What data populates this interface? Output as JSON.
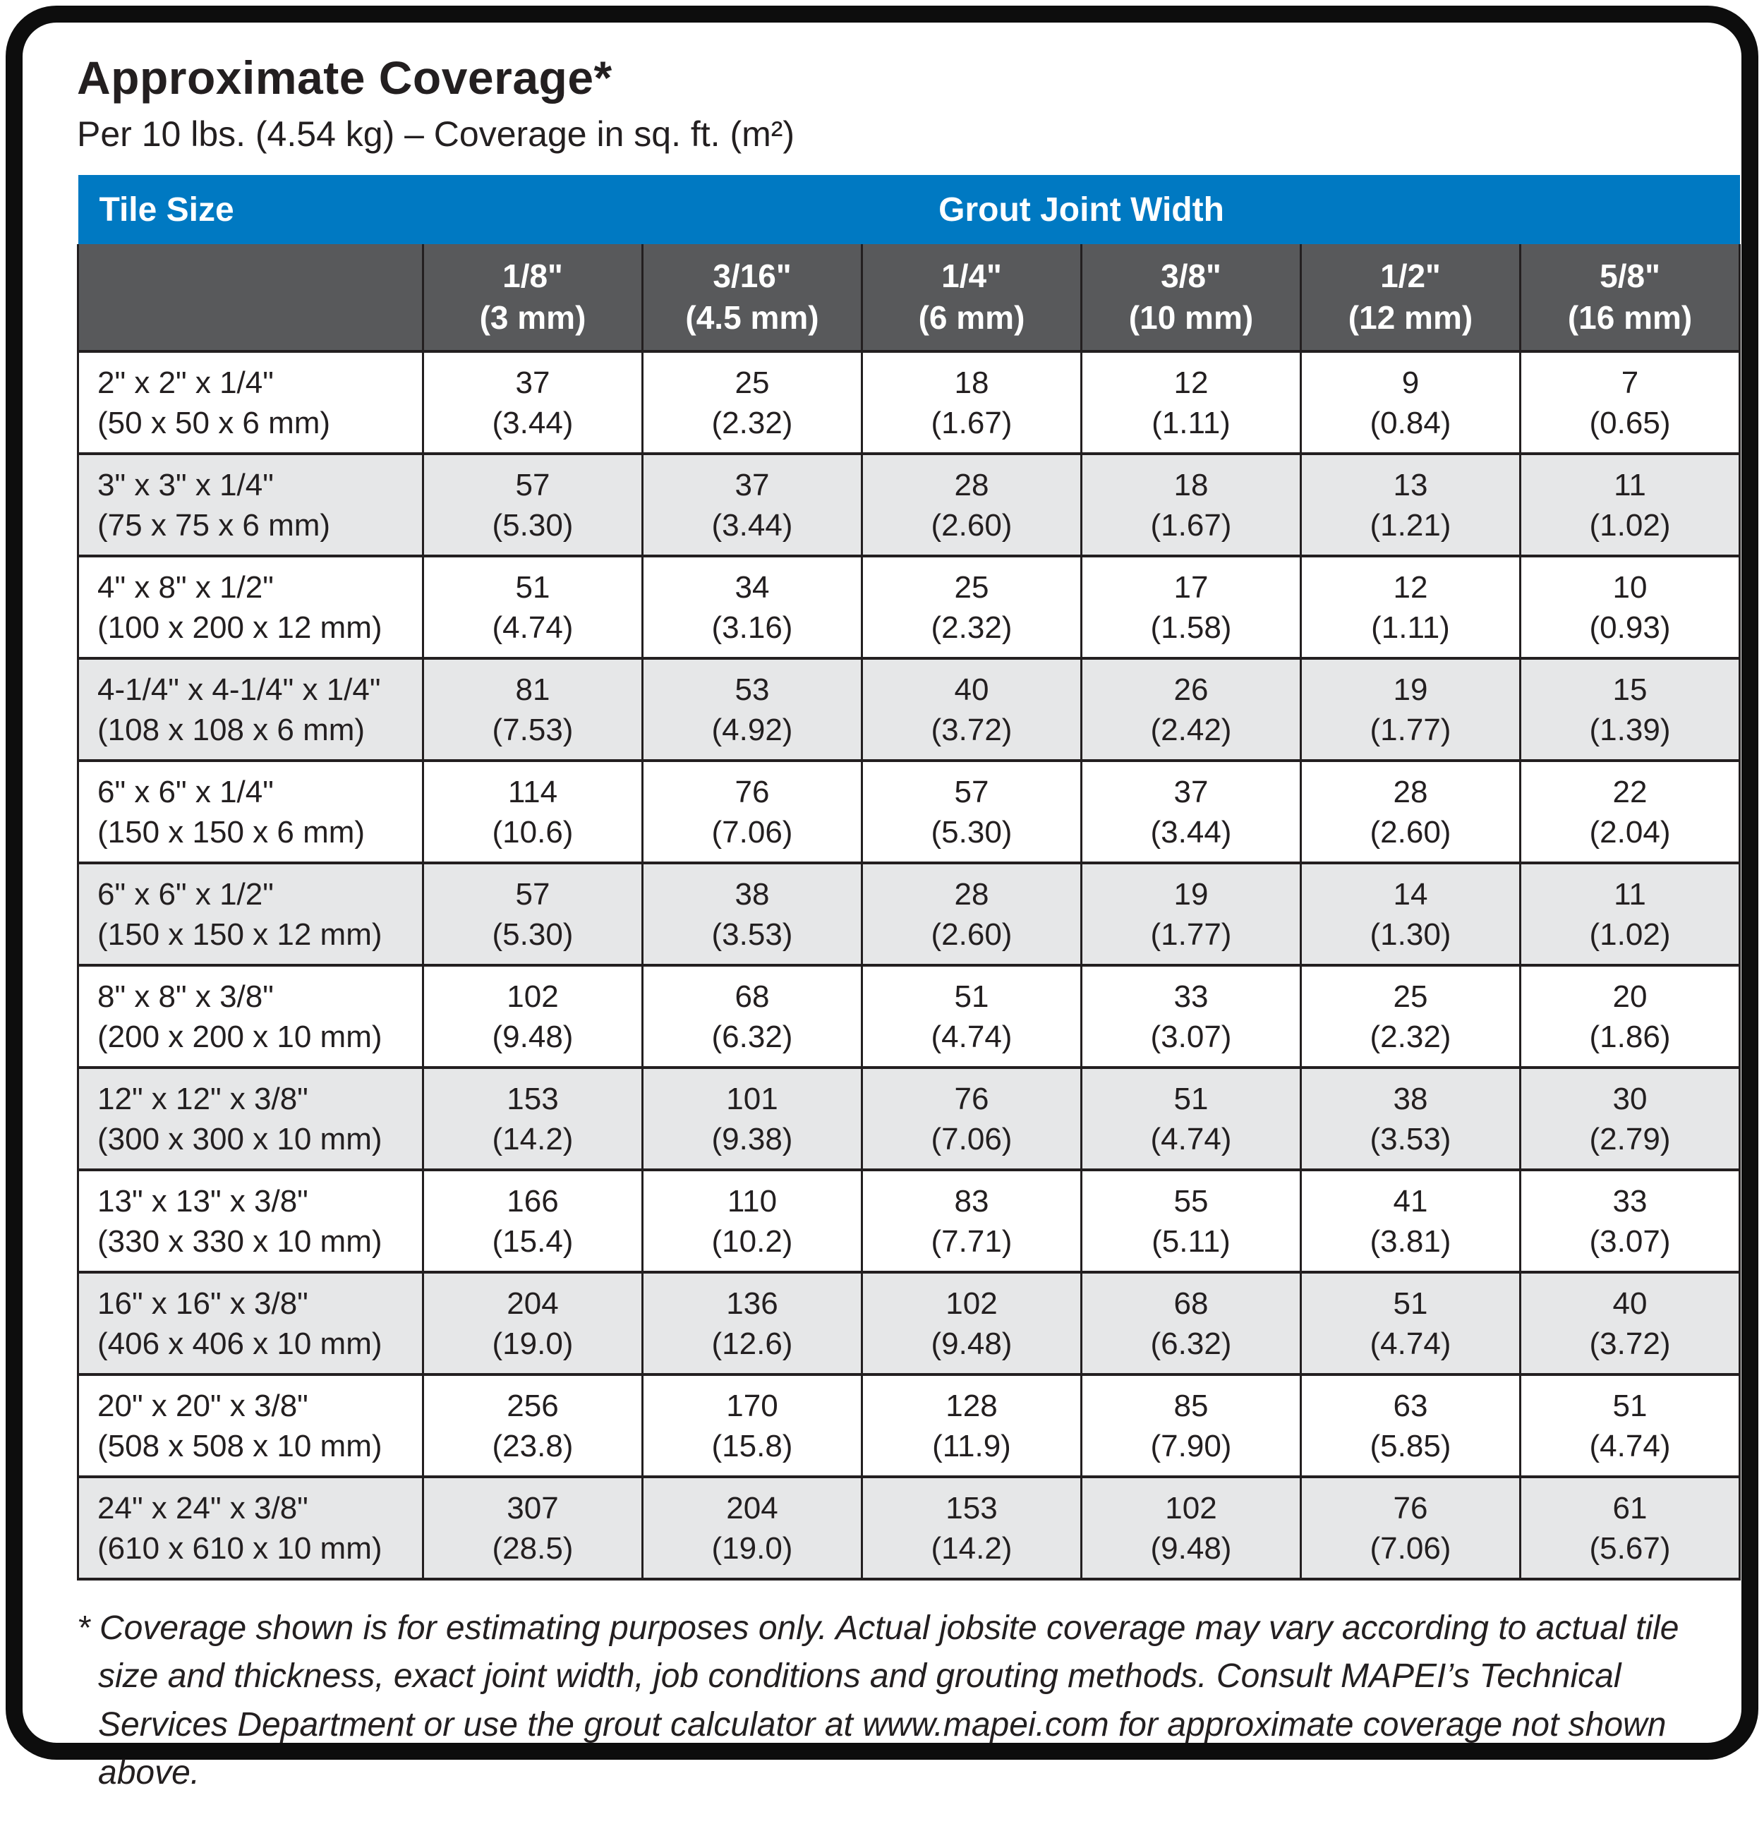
{
  "title": "Approximate Coverage*",
  "subtitle": "Per 10 lbs. (4.54 kg) – Coverage in sq. ft. (m²)",
  "table": {
    "corner_label": "Tile Size",
    "group_header": "Grout Joint Width",
    "columns": [
      {
        "width_in": "1/8\"",
        "width_mm": "(3 mm)"
      },
      {
        "width_in": "3/16\"",
        "width_mm": "(4.5 mm)"
      },
      {
        "width_in": "1/4\"",
        "width_mm": "(6 mm)"
      },
      {
        "width_in": "3/8\"",
        "width_mm": "(10 mm)"
      },
      {
        "width_in": "1/2\"",
        "width_mm": "(12 mm)"
      },
      {
        "width_in": "5/8\"",
        "width_mm": "(16 mm)"
      }
    ],
    "rows": [
      {
        "size_in": "2\" x 2\" x 1/4\"",
        "size_mm": "(50 x 50 x 6 mm)",
        "values": [
          {
            "sqft": "37",
            "m2": "(3.44)"
          },
          {
            "sqft": "25",
            "m2": "(2.32)"
          },
          {
            "sqft": "18",
            "m2": "(1.67)"
          },
          {
            "sqft": "12",
            "m2": "(1.11)"
          },
          {
            "sqft": "9",
            "m2": "(0.84)"
          },
          {
            "sqft": "7",
            "m2": "(0.65)"
          }
        ]
      },
      {
        "size_in": "3\" x 3\" x 1/4\"",
        "size_mm": "(75 x 75 x 6 mm)",
        "values": [
          {
            "sqft": "57",
            "m2": "(5.30)"
          },
          {
            "sqft": "37",
            "m2": "(3.44)"
          },
          {
            "sqft": "28",
            "m2": "(2.60)"
          },
          {
            "sqft": "18",
            "m2": "(1.67)"
          },
          {
            "sqft": "13",
            "m2": "(1.21)"
          },
          {
            "sqft": "11",
            "m2": "(1.02)"
          }
        ]
      },
      {
        "size_in": "4\" x 8\" x 1/2\"",
        "size_mm": "(100 x 200 x 12 mm)",
        "values": [
          {
            "sqft": "51",
            "m2": "(4.74)"
          },
          {
            "sqft": "34",
            "m2": "(3.16)"
          },
          {
            "sqft": "25",
            "m2": "(2.32)"
          },
          {
            "sqft": "17",
            "m2": "(1.58)"
          },
          {
            "sqft": "12",
            "m2": "(1.11)"
          },
          {
            "sqft": "10",
            "m2": "(0.93)"
          }
        ]
      },
      {
        "size_in": "4-1/4\" x 4-1/4\" x 1/4\"",
        "size_mm": "(108 x 108 x 6 mm)",
        "values": [
          {
            "sqft": "81",
            "m2": "(7.53)"
          },
          {
            "sqft": "53",
            "m2": "(4.92)"
          },
          {
            "sqft": "40",
            "m2": "(3.72)"
          },
          {
            "sqft": "26",
            "m2": "(2.42)"
          },
          {
            "sqft": "19",
            "m2": "(1.77)"
          },
          {
            "sqft": "15",
            "m2": "(1.39)"
          }
        ]
      },
      {
        "size_in": "6\" x 6\" x 1/4\"",
        "size_mm": "(150 x 150 x 6 mm)",
        "values": [
          {
            "sqft": "114",
            "m2": "(10.6)"
          },
          {
            "sqft": "76",
            "m2": "(7.06)"
          },
          {
            "sqft": "57",
            "m2": "(5.30)"
          },
          {
            "sqft": "37",
            "m2": "(3.44)"
          },
          {
            "sqft": "28",
            "m2": "(2.60)"
          },
          {
            "sqft": "22",
            "m2": "(2.04)"
          }
        ]
      },
      {
        "size_in": "6\" x 6\" x 1/2\"",
        "size_mm": "(150 x 150 x 12 mm)",
        "values": [
          {
            "sqft": "57",
            "m2": "(5.30)"
          },
          {
            "sqft": "38",
            "m2": "(3.53)"
          },
          {
            "sqft": "28",
            "m2": "(2.60)"
          },
          {
            "sqft": "19",
            "m2": "(1.77)"
          },
          {
            "sqft": "14",
            "m2": "(1.30)"
          },
          {
            "sqft": "11",
            "m2": "(1.02)"
          }
        ]
      },
      {
        "size_in": "8\" x 8\" x 3/8\"",
        "size_mm": "(200 x 200 x 10 mm)",
        "values": [
          {
            "sqft": "102",
            "m2": "(9.48)"
          },
          {
            "sqft": "68",
            "m2": "(6.32)"
          },
          {
            "sqft": "51",
            "m2": "(4.74)"
          },
          {
            "sqft": "33",
            "m2": "(3.07)"
          },
          {
            "sqft": "25",
            "m2": "(2.32)"
          },
          {
            "sqft": "20",
            "m2": "(1.86)"
          }
        ]
      },
      {
        "size_in": "12\" x 12\" x 3/8\"",
        "size_mm": "(300 x 300 x 10 mm)",
        "values": [
          {
            "sqft": "153",
            "m2": "(14.2)"
          },
          {
            "sqft": "101",
            "m2": "(9.38)"
          },
          {
            "sqft": "76",
            "m2": "(7.06)"
          },
          {
            "sqft": "51",
            "m2": "(4.74)"
          },
          {
            "sqft": "38",
            "m2": "(3.53)"
          },
          {
            "sqft": "30",
            "m2": "(2.79)"
          }
        ]
      },
      {
        "size_in": "13\" x 13\" x 3/8\"",
        "size_mm": "(330 x 330 x 10 mm)",
        "values": [
          {
            "sqft": "166",
            "m2": "(15.4)"
          },
          {
            "sqft": "110",
            "m2": "(10.2)"
          },
          {
            "sqft": "83",
            "m2": "(7.71)"
          },
          {
            "sqft": "55",
            "m2": "(5.11)"
          },
          {
            "sqft": "41",
            "m2": "(3.81)"
          },
          {
            "sqft": "33",
            "m2": "(3.07)"
          }
        ]
      },
      {
        "size_in": "16\" x 16\" x 3/8\"",
        "size_mm": "(406 x 406 x 10 mm)",
        "values": [
          {
            "sqft": "204",
            "m2": "(19.0)"
          },
          {
            "sqft": "136",
            "m2": "(12.6)"
          },
          {
            "sqft": "102",
            "m2": "(9.48)"
          },
          {
            "sqft": "68",
            "m2": "(6.32)"
          },
          {
            "sqft": "51",
            "m2": "(4.74)"
          },
          {
            "sqft": "40",
            "m2": "(3.72)"
          }
        ]
      },
      {
        "size_in": "20\" x 20\" x 3/8\"",
        "size_mm": "(508 x 508 x 10 mm)",
        "values": [
          {
            "sqft": "256",
            "m2": "(23.8)"
          },
          {
            "sqft": "170",
            "m2": "(15.8)"
          },
          {
            "sqft": "128",
            "m2": "(11.9)"
          },
          {
            "sqft": "85",
            "m2": "(7.90)"
          },
          {
            "sqft": "63",
            "m2": "(5.85)"
          },
          {
            "sqft": "51",
            "m2": "(4.74)"
          }
        ]
      },
      {
        "size_in": "24\" x 24\" x 3/8\"",
        "size_mm": "(610 x 610 x 10 mm)",
        "values": [
          {
            "sqft": "307",
            "m2": "(28.5)"
          },
          {
            "sqft": "204",
            "m2": "(19.0)"
          },
          {
            "sqft": "153",
            "m2": "(14.2)"
          },
          {
            "sqft": "102",
            "m2": "(9.48)"
          },
          {
            "sqft": "76",
            "m2": "(7.06)"
          },
          {
            "sqft": "61",
            "m2": "(5.67)"
          }
        ]
      }
    ]
  },
  "footnote": "* Coverage shown is for estimating purposes only. Actual jobsite coverage may vary according to actual tile size and thickness, exact joint width, job conditions and grouting methods. Consult MAPEI’s Technical Services Department or use the grout calculator at www.mapei.com for approximate coverage not shown above.",
  "colors": {
    "header_blue": "#0079c2",
    "header_gray": "#58595b",
    "row_alt_gray": "#e6e7e8",
    "text": "#231f20"
  }
}
